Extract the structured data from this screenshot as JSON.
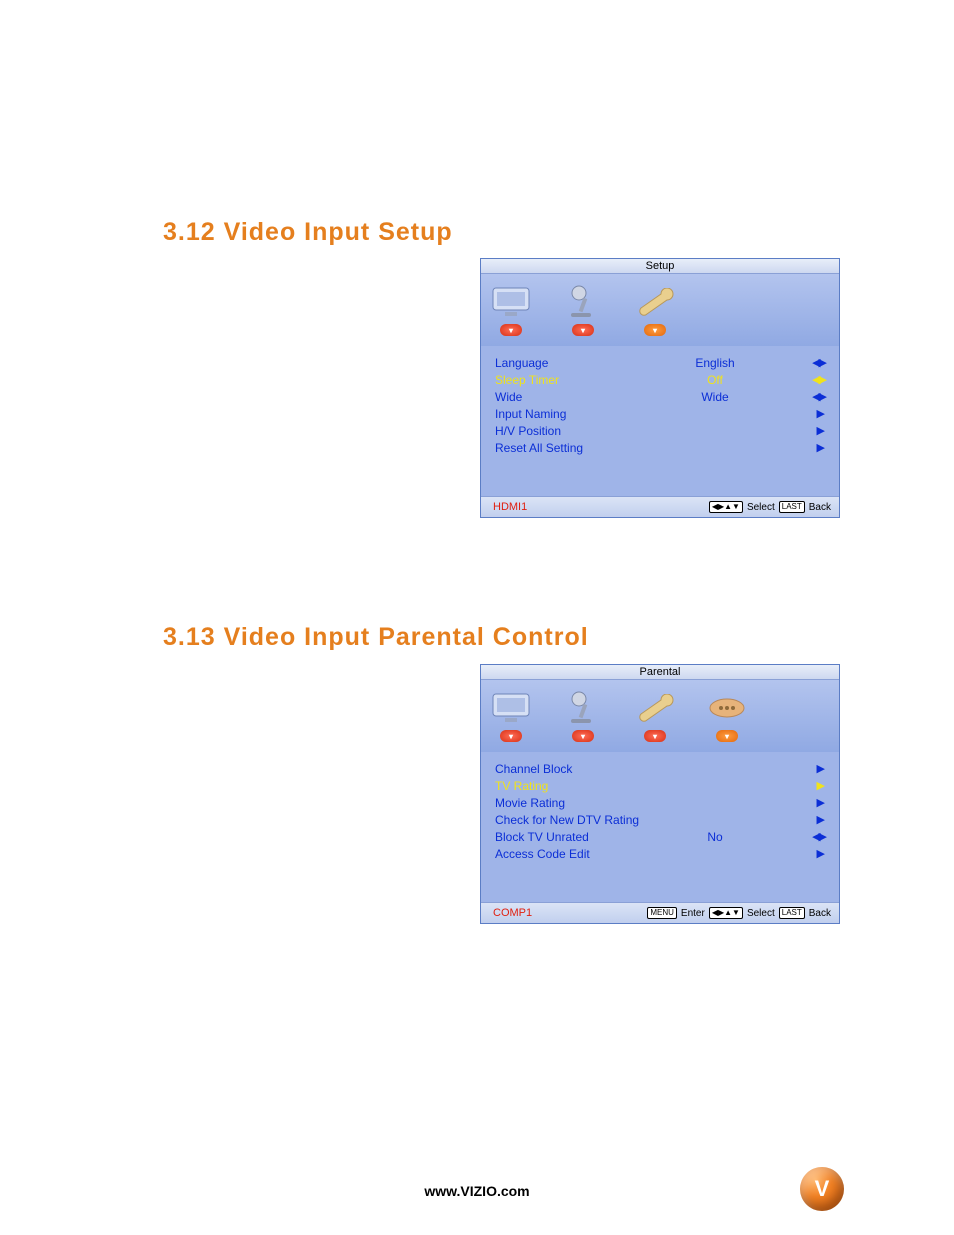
{
  "headings": {
    "h312": "3.12 Video Input Setup",
    "h313": "3.13 Video Input Parental Control"
  },
  "footer": {
    "url": "www.VIZIO.com",
    "logo_letter": "V",
    "logo_bg": "#e37b1f"
  },
  "colors": {
    "heading": "#e57f1e",
    "panel_bg": "#9fb4e8",
    "panel_border": "#5b7dc5",
    "row_text_blue": "#0b2ed6",
    "row_text_yellow": "#f0e31b",
    "footer_source": "#e02010"
  },
  "panel_setup": {
    "title": "Setup",
    "icons": [
      "tv",
      "mic",
      "wrench"
    ],
    "badges": [
      "red",
      "red",
      "orange"
    ],
    "rows": [
      {
        "label": "Language",
        "value": "English",
        "arrow": "lr",
        "color": "blue"
      },
      {
        "label": "Sleep Timer",
        "value": "Off",
        "arrow": "lr",
        "color": "yellow"
      },
      {
        "label": "Wide",
        "value": "Wide",
        "arrow": "lr",
        "color": "blue"
      },
      {
        "label": "Input Naming",
        "value": "",
        "arrow": "r",
        "color": "blue"
      },
      {
        "label": "H/V Position",
        "value": "",
        "arrow": "r",
        "color": "blue"
      },
      {
        "label": "Reset All Setting",
        "value": "",
        "arrow": "r",
        "color": "blue"
      }
    ],
    "footer": {
      "source": "HDMI1",
      "buttons": [
        {
          "cap": "◀▶▲▼",
          "text": "Select"
        },
        {
          "cap": "LAST",
          "text": "Back"
        }
      ]
    }
  },
  "panel_parental": {
    "title": "Parental",
    "icons": [
      "tv",
      "mic",
      "wrench",
      "remote"
    ],
    "badges": [
      "red",
      "red",
      "red",
      "orange"
    ],
    "rows": [
      {
        "label": "Channel Block",
        "value": "",
        "arrow": "r",
        "color": "blue"
      },
      {
        "label": "TV Rating",
        "value": "",
        "arrow": "r",
        "color": "yellow"
      },
      {
        "label": "Movie Rating",
        "value": "",
        "arrow": "r",
        "color": "blue"
      },
      {
        "label": "Check for New DTV Rating",
        "value": "",
        "arrow": "r",
        "color": "blue"
      },
      {
        "label": "Block TV Unrated",
        "value": "No",
        "arrow": "lr",
        "color": "blue"
      },
      {
        "label": "Access Code Edit",
        "value": "",
        "arrow": "r",
        "color": "blue"
      }
    ],
    "footer": {
      "source": "COMP1",
      "buttons": [
        {
          "cap": "MENU",
          "text": "Enter"
        },
        {
          "cap": "◀▶▲▼",
          "text": "Select"
        },
        {
          "cap": "LAST",
          "text": "Back"
        }
      ]
    }
  }
}
